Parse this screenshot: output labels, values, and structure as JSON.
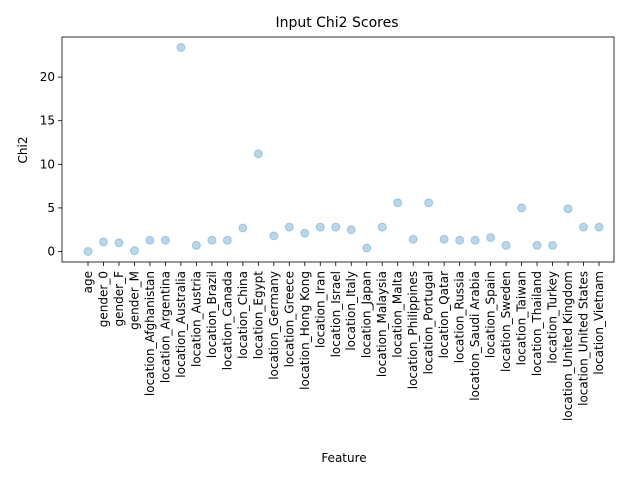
{
  "chart_data": {
    "type": "scatter",
    "title": "Input Chi2 Scores",
    "xlabel": "Feature",
    "ylabel": "Chi2",
    "ylim": [
      -1.2,
      24.6
    ],
    "yticks": [
      0,
      5,
      10,
      15,
      20
    ],
    "grid": false,
    "legend": "none",
    "point_color": "#1f77b4",
    "categories": [
      "age",
      "gender_0",
      "gender_F",
      "gender_M",
      "location_Afghanistan",
      "location_Argentina",
      "location_Australia",
      "location_Austria",
      "location_Brazil",
      "location_Canada",
      "location_China",
      "location_Egypt",
      "location_Germany",
      "location_Greece",
      "location_Hong Kong",
      "location_Iran",
      "location_Israel",
      "location_Italy",
      "location_Japan",
      "location_Malaysia",
      "location_Malta",
      "location_Philippines",
      "location_Portugal",
      "location_Qatar",
      "location_Russia",
      "location_Saudi Arabia",
      "location_Spain",
      "location_Sweden",
      "location_Taiwan",
      "location_Thailand",
      "location_Turkey",
      "location_United Kingdom",
      "location_United States",
      "location_Vietnam"
    ],
    "values": [
      0.0,
      1.1,
      1.0,
      0.1,
      1.3,
      1.3,
      23.4,
      0.7,
      1.3,
      1.3,
      2.7,
      11.2,
      1.8,
      2.8,
      2.1,
      2.8,
      2.8,
      2.5,
      0.4,
      2.8,
      5.6,
      1.4,
      5.6,
      1.4,
      1.3,
      1.3,
      1.6,
      0.7,
      5.0,
      0.7,
      0.7,
      4.9,
      2.8,
      2.8
    ]
  }
}
